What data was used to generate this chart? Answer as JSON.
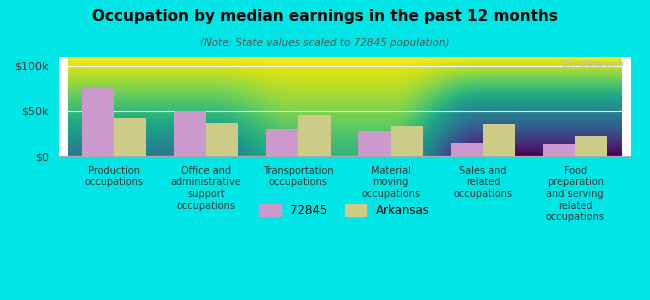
{
  "title": "Occupation by median earnings in the past 12 months",
  "subtitle": "(Note: State values scaled to 72845 population)",
  "categories": [
    "Production\noccupations",
    "Office and\nadministrative\nsupport\noccupations",
    "Transportation\noccupations",
    "Material\nmoving\noccupations",
    "Sales and\nrelated\noccupations",
    "Food\npreparation\nand serving\nrelated\noccupations"
  ],
  "values_72845": [
    75000,
    50000,
    30000,
    28000,
    15000,
    13000
  ],
  "values_arkansas": [
    42000,
    37000,
    45000,
    33000,
    36000,
    22000
  ],
  "color_72845": "#cc99cc",
  "color_arkansas": "#cccc88",
  "background_color": "#00e5e5",
  "ylim": [
    0,
    110000
  ],
  "yticks": [
    0,
    50000,
    100000
  ],
  "ytick_labels": [
    "$0",
    "$50k",
    "$100k"
  ],
  "legend_labels": [
    "72845",
    "Arkansas"
  ],
  "watermark": "City-Data.com",
  "bar_width": 0.35
}
